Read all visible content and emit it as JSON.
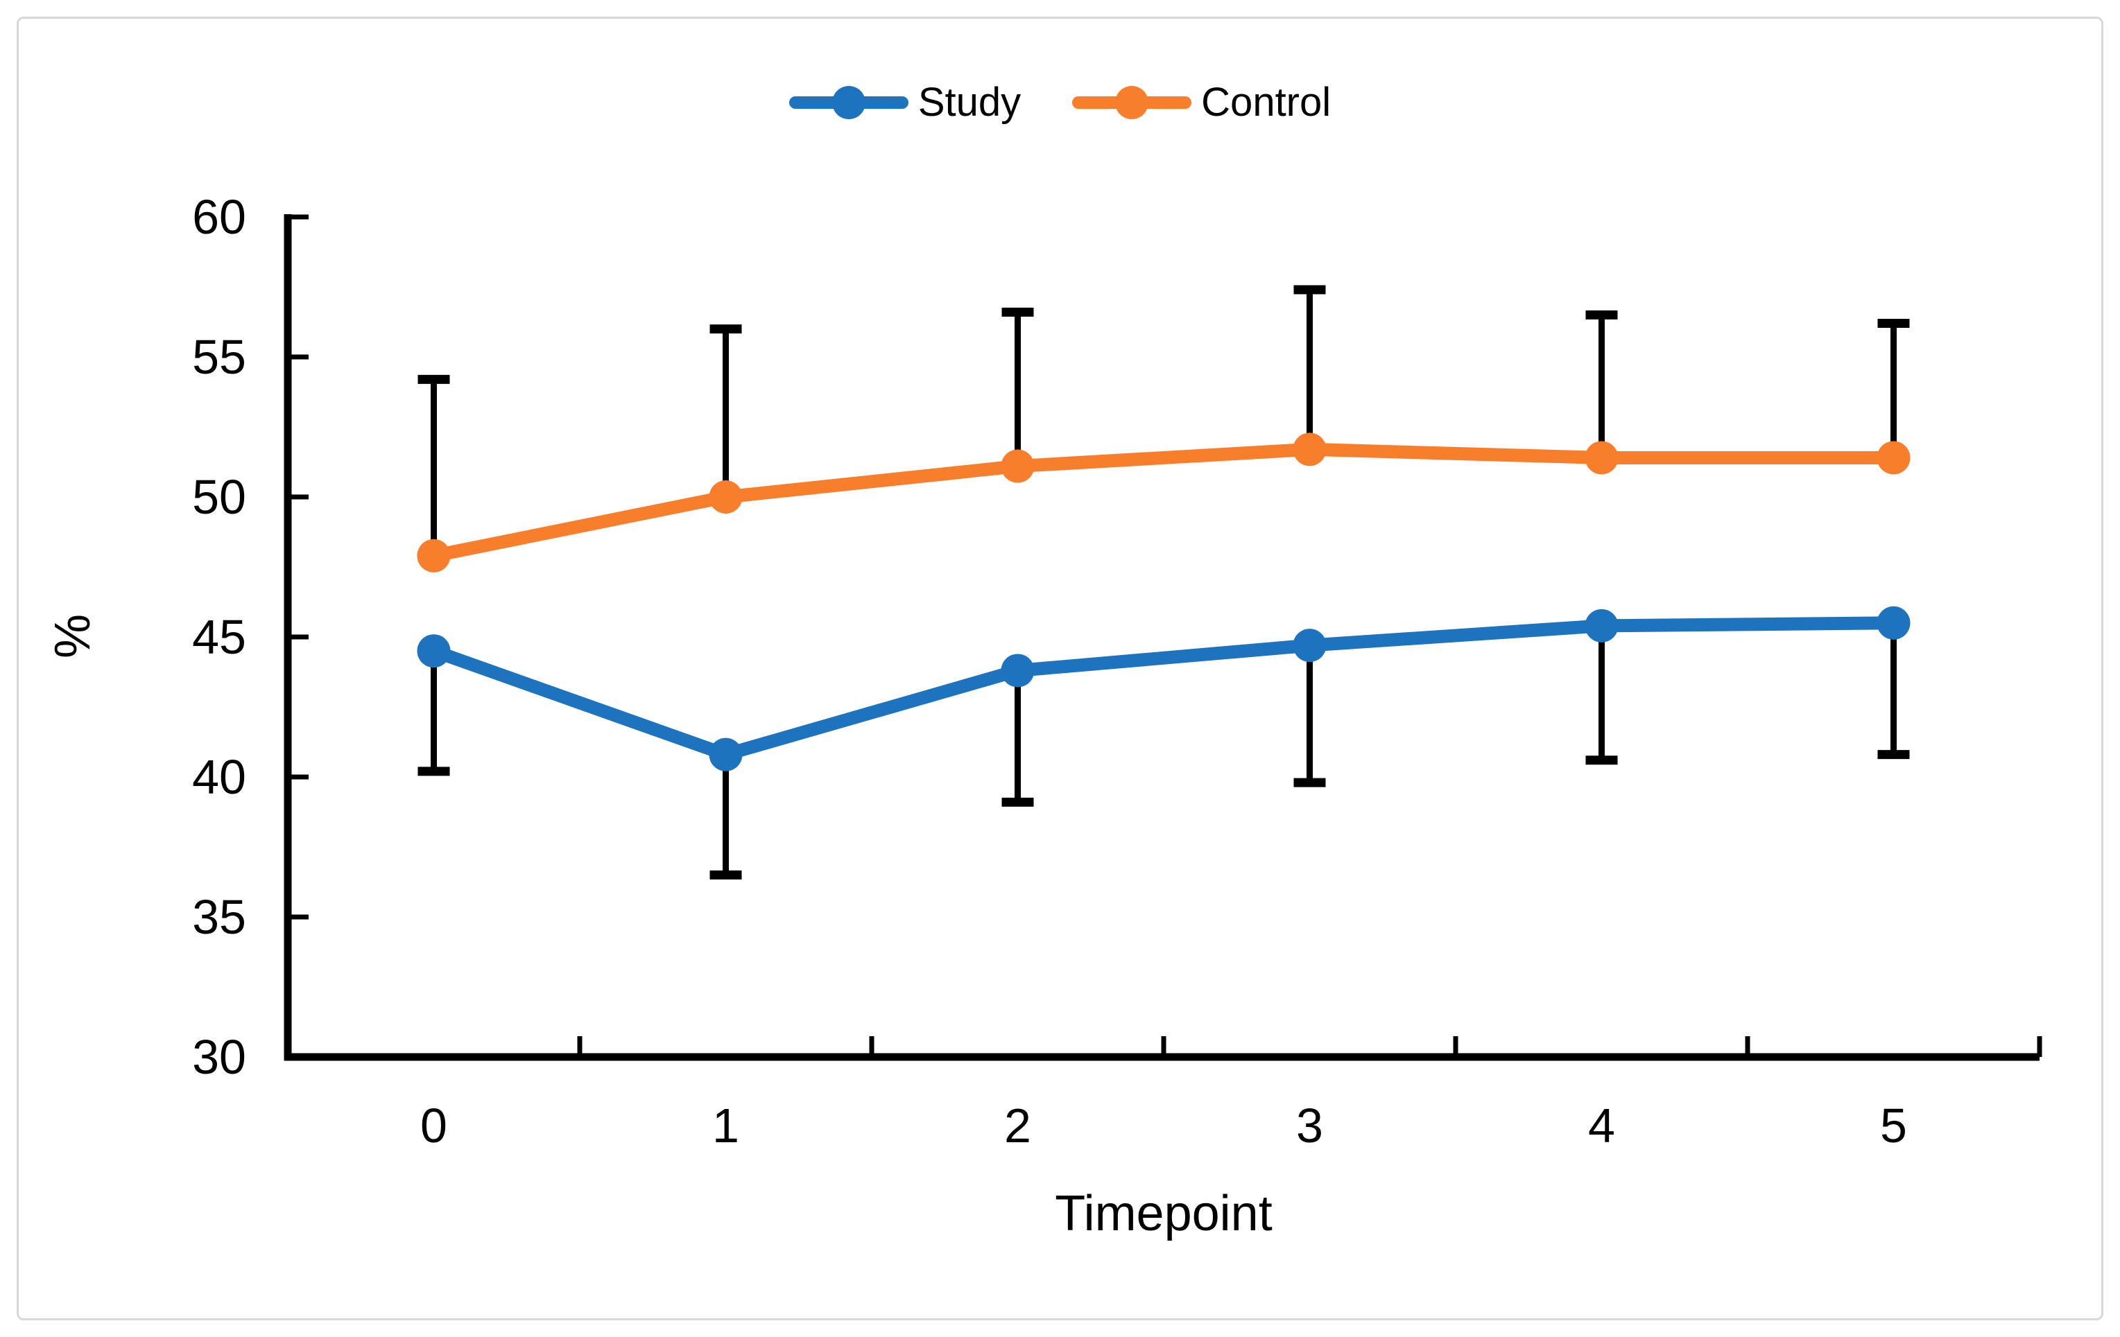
{
  "frame": {
    "border_color": "#D8D8D8",
    "background": "#FFFFFF"
  },
  "legend": {
    "position": "top-center"
  },
  "chart_data": {
    "type": "line",
    "title": "",
    "xlabel": "Timepoint",
    "ylabel": "%",
    "x": [
      0,
      1,
      2,
      3,
      4,
      5
    ],
    "xticks_labels": [
      "0",
      "1",
      "2",
      "3",
      "4",
      "5"
    ],
    "yticks": [
      30,
      35,
      40,
      45,
      50,
      55,
      60
    ],
    "ylim": [
      30,
      60
    ],
    "grid": false,
    "legend_position": "top-center",
    "axis_color": "#000000",
    "error_bar_color": "#000000",
    "series": [
      {
        "name": "Study",
        "color": "#1E73BE",
        "values": [
          44.5,
          40.8,
          43.8,
          44.7,
          45.4,
          45.5
        ],
        "error_direction": "minus",
        "error_bar_ends": [
          40.2,
          36.5,
          39.1,
          39.8,
          40.6,
          40.8
        ]
      },
      {
        "name": "Control",
        "color": "#F97E2B",
        "values": [
          47.9,
          50.0,
          51.1,
          51.7,
          51.4,
          51.4
        ],
        "error_direction": "plus",
        "error_bar_ends": [
          54.2,
          56.0,
          56.6,
          57.4,
          56.5,
          56.2
        ]
      }
    ]
  }
}
